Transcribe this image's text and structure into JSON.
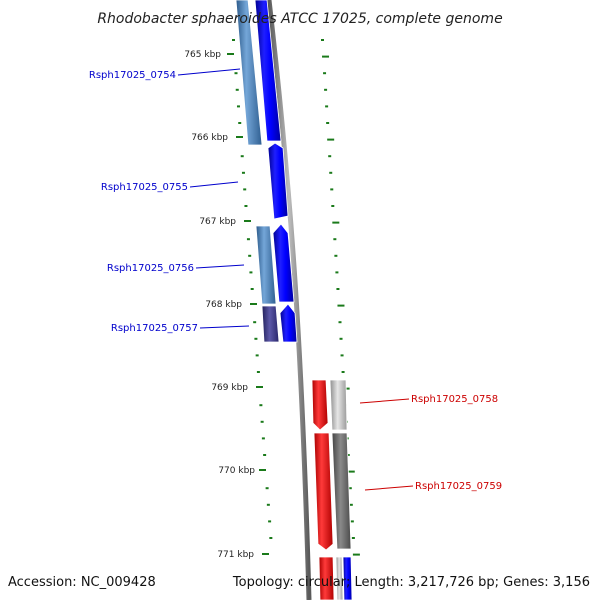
{
  "title": "Rhodobacter sphaeroides ATCC 17025, complete genome",
  "footer": {
    "accession": "Accession: NC_009428",
    "summary": "Topology: circular; Length: 3,217,726 bp; Genes: 3,156"
  },
  "ticks": [
    {
      "label": "765 kbp"
    },
    {
      "label": "766 kbp"
    },
    {
      "label": "767 kbp"
    },
    {
      "label": "768 kbp"
    },
    {
      "label": "769 kbp"
    },
    {
      "label": "770 kbp"
    },
    {
      "label": "771 kbp"
    }
  ],
  "genes": [
    {
      "name": "Rsph17025_0754",
      "strand": "+",
      "color": "#0000cc"
    },
    {
      "name": "Rsph17025_0755",
      "strand": "+",
      "color": "#0000cc"
    },
    {
      "name": "Rsph17025_0756",
      "strand": "+",
      "color": "#0000cc"
    },
    {
      "name": "Rsph17025_0757",
      "strand": "+",
      "color": "#0000cc"
    },
    {
      "name": "Rsph17025_0758",
      "strand": "-",
      "color": "#cc0000"
    },
    {
      "name": "Rsph17025_0759",
      "strand": "-",
      "color": "#cc0000"
    }
  ],
  "colors": {
    "forward_cds": "#0000ff",
    "forward_cog": "#4a80bb",
    "reverse_cds": "#ff0000",
    "reverse_cog": "#888888",
    "tick": "#1a7a1a",
    "backbone": "#8a8a8a"
  }
}
